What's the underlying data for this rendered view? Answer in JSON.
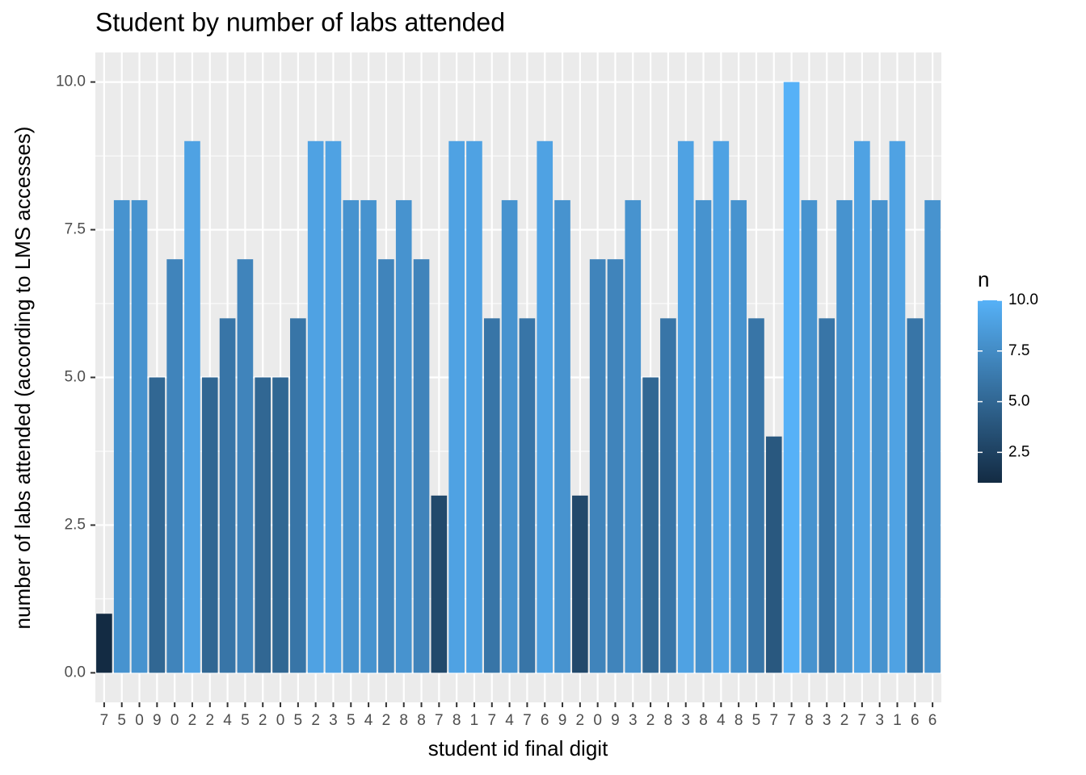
{
  "chart_data": {
    "type": "bar",
    "title": "Student by number of labs attended",
    "x_label": "student id final digit",
    "y_label": "number of labs attended (according to LMS accesses)",
    "categories": [
      "7",
      "5",
      "0",
      "9",
      "0",
      "2",
      "2",
      "4",
      "5",
      "2",
      "0",
      "5",
      "2",
      "3",
      "5",
      "4",
      "2",
      "8",
      "8",
      "7",
      "8",
      "1",
      "7",
      "4",
      "7",
      "6",
      "9",
      "2",
      "0",
      "9",
      "3",
      "2",
      "8",
      "3",
      "8",
      "4",
      "8",
      "5",
      "7",
      "7",
      "8",
      "3",
      "2",
      "7",
      "3",
      "1",
      "6",
      "6"
    ],
    "values": [
      1,
      8,
      8,
      5,
      7,
      9,
      5,
      6,
      7,
      5,
      5,
      6,
      9,
      9,
      8,
      8,
      7,
      8,
      7,
      3,
      9,
      9,
      6,
      8,
      6,
      9,
      8,
      3,
      7,
      7,
      8,
      5,
      6,
      9,
      8,
      9,
      8,
      6,
      4,
      10,
      8,
      6,
      8,
      9,
      8,
      9,
      6,
      8
    ],
    "ylim": [
      -0.5,
      10.5
    ],
    "yticks": [
      {
        "value": 0,
        "label": "0.0"
      },
      2.5,
      {
        "value": 5,
        "label": "5.0"
      },
      7.5,
      {
        "value": 10,
        "label": "10.0"
      }
    ],
    "grid": true,
    "color_low": "#132B43",
    "color_high": "#56B1F7",
    "legend": {
      "title": "n",
      "range": [
        1,
        10
      ],
      "position": "right",
      "ticks": [
        2.5,
        {
          "value": 5,
          "label": "5.0"
        },
        7.5,
        {
          "value": 10,
          "label": "10.0"
        }
      ]
    }
  }
}
